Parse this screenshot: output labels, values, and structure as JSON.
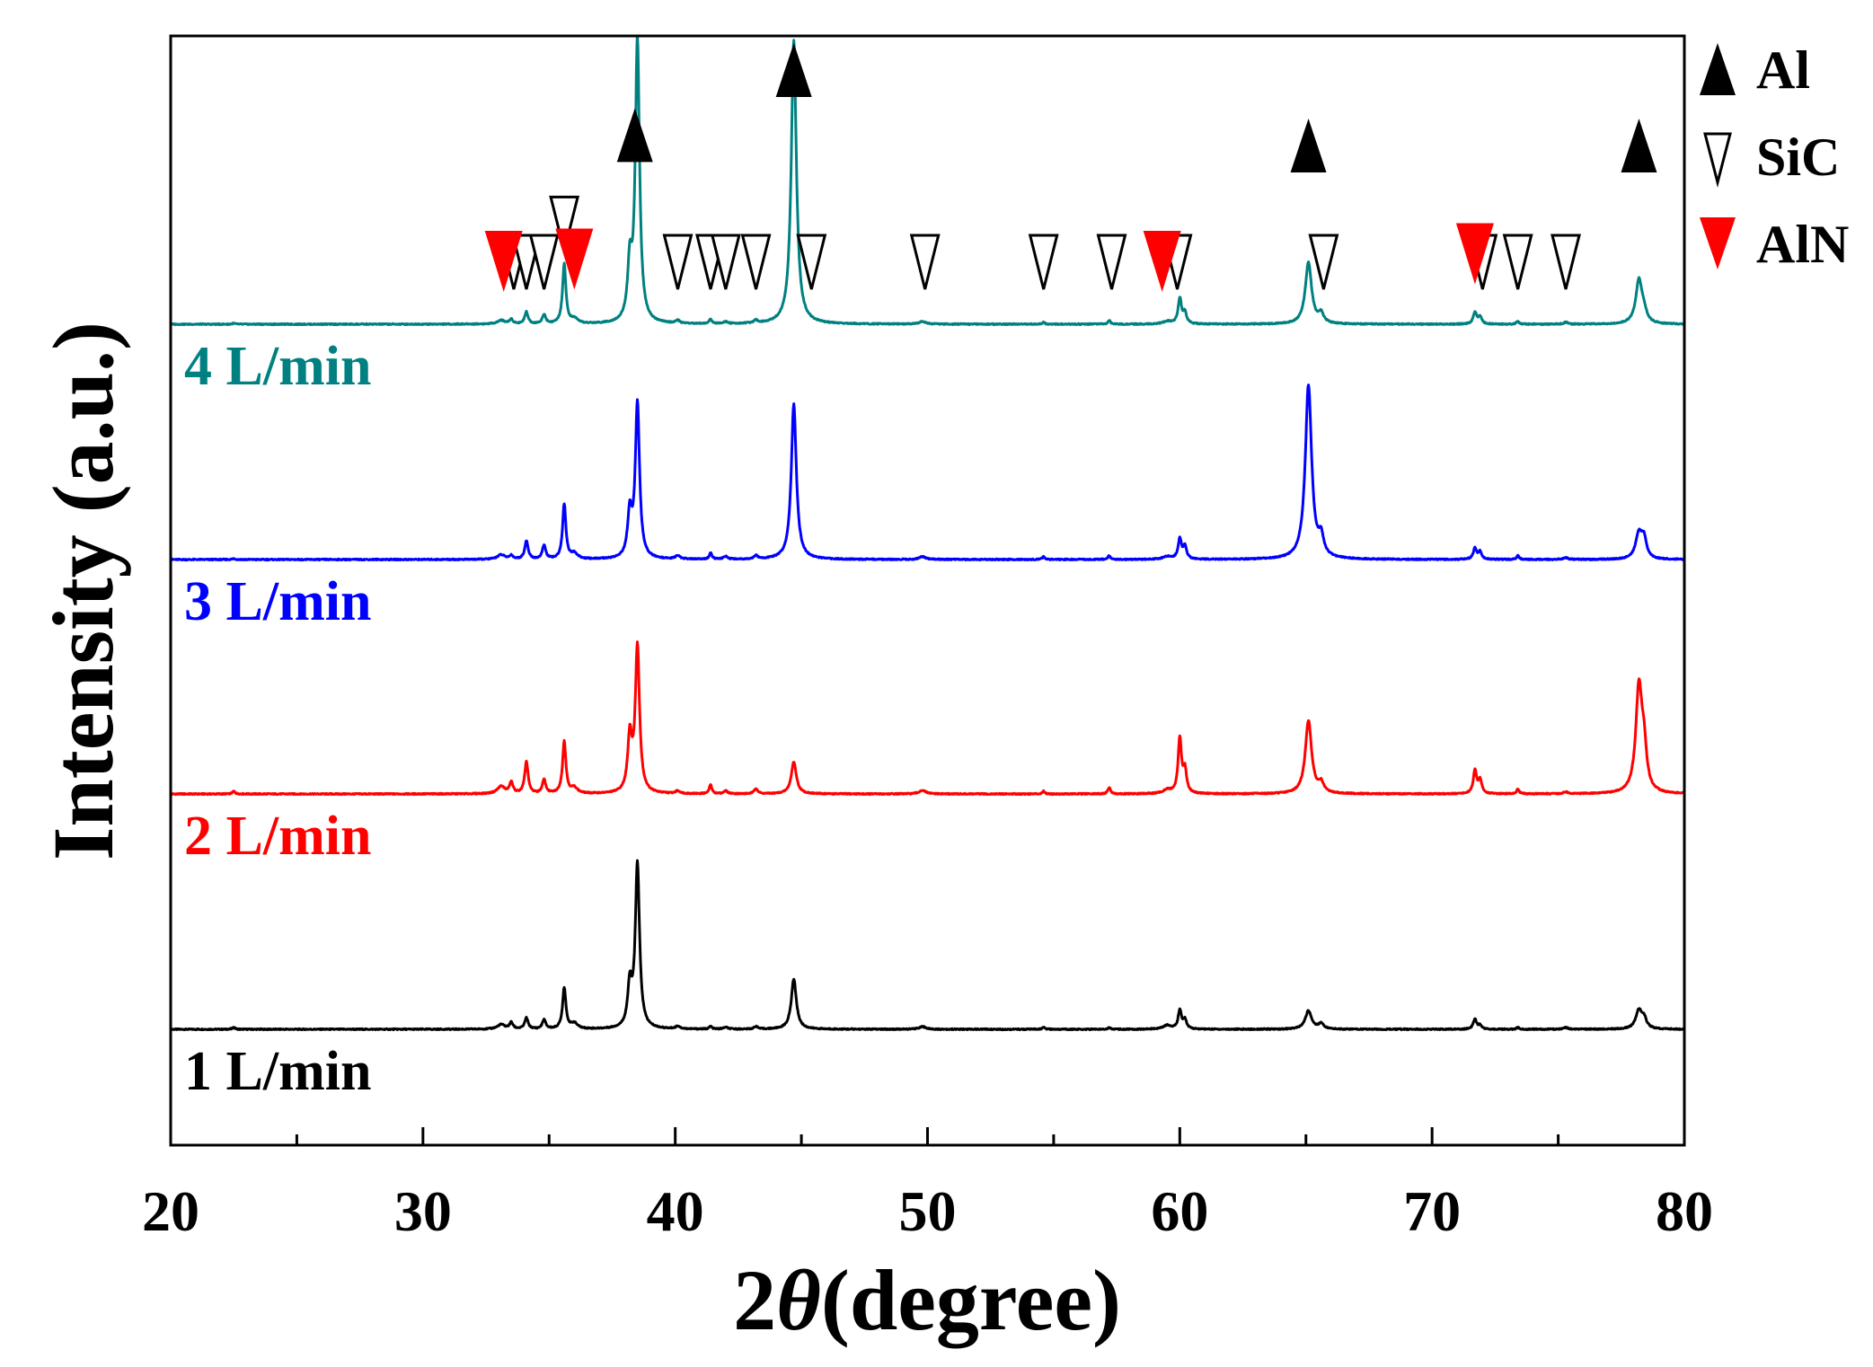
{
  "chart_data": {
    "type": "line",
    "title": "",
    "xlabel_prefix": "2",
    "xlabel_theta": "θ",
    "xlabel_suffix": "(degree)",
    "ylabel": "Intensity (a.u.)",
    "xlim": [
      20,
      80
    ],
    "x_ticks": [
      20,
      30,
      40,
      50,
      60,
      70,
      80
    ],
    "x_tick_labels": [
      "20",
      "30",
      "40",
      "50",
      "60",
      "70",
      "80"
    ],
    "grid": false,
    "y_ticks_shown": false,
    "peaks": [
      {
        "x": 22.5,
        "w": 0.06
      },
      {
        "x": 33.1,
        "w": 0.18
      },
      {
        "x": 33.5,
        "w": 0.08
      },
      {
        "x": 34.1,
        "w": 0.08
      },
      {
        "x": 34.8,
        "w": 0.08
      },
      {
        "x": 35.6,
        "w": 0.08
      },
      {
        "x": 36.0,
        "w": 0.15
      },
      {
        "x": 38.2,
        "w": 0.1
      },
      {
        "x": 38.5,
        "w": 0.1
      },
      {
        "x": 40.1,
        "w": 0.1
      },
      {
        "x": 41.4,
        "w": 0.06
      },
      {
        "x": 42.0,
        "w": 0.1
      },
      {
        "x": 43.2,
        "w": 0.08
      },
      {
        "x": 44.7,
        "w": 0.12
      },
      {
        "x": 49.8,
        "w": 0.15
      },
      {
        "x": 54.6,
        "w": 0.06
      },
      {
        "x": 57.2,
        "w": 0.06
      },
      {
        "x": 59.5,
        "w": 0.2
      },
      {
        "x": 60.0,
        "w": 0.08
      },
      {
        "x": 60.2,
        "w": 0.08
      },
      {
        "x": 65.1,
        "w": 0.15
      },
      {
        "x": 65.6,
        "w": 0.12
      },
      {
        "x": 71.7,
        "w": 0.08
      },
      {
        "x": 71.9,
        "w": 0.08
      },
      {
        "x": 73.4,
        "w": 0.06
      },
      {
        "x": 75.3,
        "w": 0.1
      },
      {
        "x": 78.2,
        "w": 0.15
      },
      {
        "x": 78.4,
        "w": 0.12
      }
    ],
    "series": [
      {
        "name": "1 L/min",
        "label": "1 L/min",
        "color": "#000000",
        "offset": 0,
        "intensities": [
          0.02,
          0.05,
          0.07,
          0.12,
          0.1,
          0.45,
          0.06,
          0.45,
          1.8,
          0.03,
          0.03,
          0.02,
          0.03,
          0.55,
          0.03,
          0.02,
          0.02,
          0.04,
          0.2,
          0.1,
          0.2,
          0.06,
          0.11,
          0.04,
          0.02,
          0.02,
          0.2,
          0.1
        ]
      },
      {
        "name": "2 L/min",
        "label": "2 L/min",
        "color": "#ff0000",
        "offset": 1,
        "intensities": [
          0.03,
          0.08,
          0.12,
          0.35,
          0.15,
          0.57,
          0.06,
          0.6,
          1.6,
          0.03,
          0.1,
          0.03,
          0.06,
          0.35,
          0.04,
          0.03,
          0.07,
          0.04,
          0.6,
          0.25,
          0.8,
          0.1,
          0.25,
          0.15,
          0.05,
          0.02,
          1.15,
          0.4
        ]
      },
      {
        "name": "3 L/min",
        "label": "3 L/min",
        "color": "#0000ff",
        "offset": 2,
        "intensities": [
          0.01,
          0.05,
          0.04,
          0.2,
          0.15,
          0.6,
          0.06,
          0.48,
          1.7,
          0.04,
          0.07,
          0.03,
          0.04,
          1.7,
          0.03,
          0.03,
          0.04,
          0.03,
          0.22,
          0.14,
          1.9,
          0.2,
          0.12,
          0.08,
          0.04,
          0.02,
          0.28,
          0.2
        ]
      },
      {
        "name": "4 L/min",
        "label": "4 L/min",
        "color": "#008080",
        "offset": 3,
        "intensities": [
          0.01,
          0.04,
          0.05,
          0.13,
          0.1,
          0.65,
          0.05,
          0.6,
          3.1,
          0.03,
          0.05,
          0.02,
          0.03,
          3.1,
          0.03,
          0.02,
          0.04,
          0.03,
          0.28,
          0.12,
          0.67,
          0.1,
          0.13,
          0.08,
          0.03,
          0.02,
          0.48,
          0.1
        ]
      }
    ],
    "phase_markers": [
      {
        "phase": "Al",
        "x": 38.4
      },
      {
        "phase": "Al",
        "x": 44.7
      },
      {
        "phase": "Al",
        "x": 65.1
      },
      {
        "phase": "Al",
        "x": 78.2
      },
      {
        "phase": "SiC",
        "x": 33.6
      },
      {
        "phase": "SiC",
        "x": 34.1
      },
      {
        "phase": "SiC",
        "x": 34.8
      },
      {
        "phase": "SiC",
        "x": 35.6
      },
      {
        "phase": "SiC",
        "x": 40.1
      },
      {
        "phase": "SiC",
        "x": 41.4
      },
      {
        "phase": "SiC",
        "x": 42.0
      },
      {
        "phase": "SiC",
        "x": 43.2
      },
      {
        "phase": "SiC",
        "x": 45.4
      },
      {
        "phase": "SiC",
        "x": 49.9
      },
      {
        "phase": "SiC",
        "x": 54.6
      },
      {
        "phase": "SiC",
        "x": 57.3
      },
      {
        "phase": "SiC",
        "x": 59.9
      },
      {
        "phase": "SiC",
        "x": 65.7
      },
      {
        "phase": "SiC",
        "x": 72.0
      },
      {
        "phase": "SiC",
        "x": 73.4
      },
      {
        "phase": "SiC",
        "x": 75.3
      },
      {
        "phase": "AlN",
        "x": 33.2
      },
      {
        "phase": "AlN",
        "x": 36.0
      },
      {
        "phase": "AlN",
        "x": 59.3
      },
      {
        "phase": "AlN",
        "x": 71.7
      }
    ],
    "legend": {
      "placement": "right-outside-top",
      "entries": [
        {
          "label": "Al",
          "symbol": "filled-up-triangle",
          "color": "#000000"
        },
        {
          "label": "SiC",
          "symbol": "open-down-triangle",
          "color": "#000000"
        },
        {
          "label": "AlN",
          "symbol": "filled-down-triangle",
          "color": "#ff0000"
        }
      ]
    }
  }
}
